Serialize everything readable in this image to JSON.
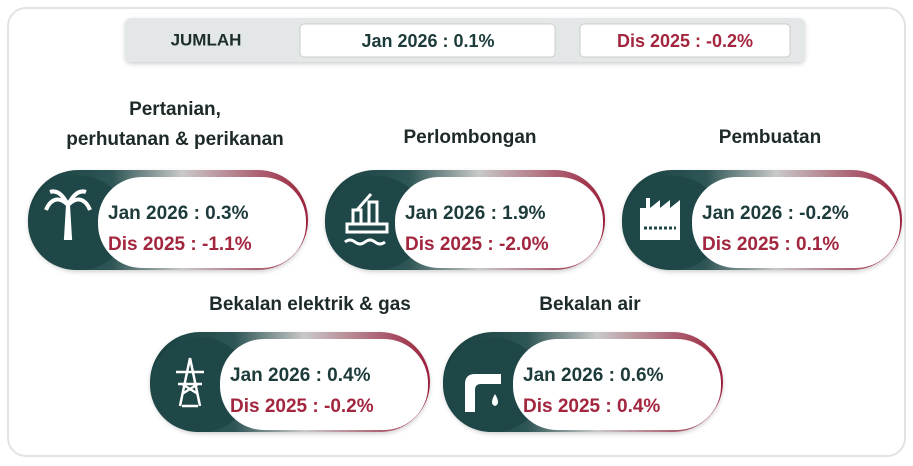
{
  "header": {
    "label": "JUMLAH",
    "current": "Jan 2026 : 0.1%",
    "previous": "Dis 2025 : -0.2%"
  },
  "cards": [
    {
      "title": [
        "Pertanian,",
        "perhutanan & perikanan"
      ],
      "current": "Jan 2026 : 0.3%",
      "previous": "Dis 2025 : -1.1%"
    },
    {
      "title": [
        "Perlombongan"
      ],
      "current": "Jan 2026 : 1.9%",
      "previous": "Dis 2025 : -2.0%"
    },
    {
      "title": [
        "Pembuatan"
      ],
      "current": "Jan 2026 : -0.2%",
      "previous": "Dis 2025 : 0.1%"
    },
    {
      "title": [
        "Bekalan elektrik & gas"
      ],
      "current": "Jan 2026 : 0.4%",
      "previous": "Dis 2025 : -0.2%"
    },
    {
      "title": [
        "Bekalan air"
      ],
      "current": "Jan 2026 : 0.6%",
      "previous": "Dis 2025 : 0.4%"
    }
  ]
}
